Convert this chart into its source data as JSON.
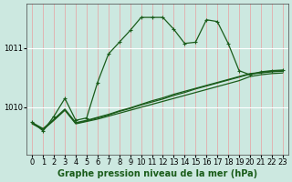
{
  "title": "Graphe pression niveau de la mer (hPa)",
  "background_color": "#cce8e0",
  "plot_bg_color": "#cce8e0",
  "grid_color_v": "#e8a0a0",
  "grid_color_h": "#ffffff",
  "line_color": "#1a5c1a",
  "xlim": [
    -0.5,
    23.5
  ],
  "ylim": [
    1009.2,
    1011.75
  ],
  "yticks": [
    1010,
    1011
  ],
  "xticks": [
    0,
    1,
    2,
    3,
    4,
    5,
    6,
    7,
    8,
    9,
    10,
    11,
    12,
    13,
    14,
    15,
    16,
    17,
    18,
    19,
    20,
    21,
    22,
    23
  ],
  "main_x": [
    0,
    1,
    2,
    3,
    4,
    5,
    6,
    7,
    8,
    9,
    10,
    11,
    12,
    13,
    14,
    15,
    16,
    17,
    18,
    19,
    20,
    21,
    22,
    23
  ],
  "main_y": [
    1009.75,
    1009.6,
    1009.85,
    1010.15,
    1009.78,
    1009.82,
    1010.42,
    1010.9,
    1011.1,
    1011.3,
    1011.52,
    1011.52,
    1011.52,
    1011.32,
    1011.08,
    1011.1,
    1011.48,
    1011.45,
    1011.08,
    1010.62,
    1010.55,
    1010.6,
    1010.62,
    1010.63
  ],
  "line1_x": [
    0,
    1,
    2,
    3,
    4,
    5,
    6,
    7,
    8,
    9,
    10,
    11,
    12,
    13,
    14,
    15,
    16,
    17,
    18,
    19,
    20,
    21,
    22,
    23
  ],
  "line1_y": [
    1009.72,
    1009.62,
    1009.78,
    1009.95,
    1009.72,
    1009.76,
    1009.8,
    1009.85,
    1009.9,
    1009.95,
    1010.0,
    1010.05,
    1010.1,
    1010.15,
    1010.2,
    1010.25,
    1010.3,
    1010.35,
    1010.4,
    1010.45,
    1010.52,
    1010.55,
    1010.57,
    1010.58
  ],
  "line2_x": [
    0,
    1,
    2,
    3,
    4,
    5,
    6,
    7,
    8,
    9,
    10,
    11,
    12,
    13,
    14,
    15,
    16,
    17,
    18,
    19,
    20,
    21,
    22,
    23
  ],
  "line2_y": [
    1009.73,
    1009.63,
    1009.79,
    1009.96,
    1009.73,
    1009.77,
    1009.82,
    1009.87,
    1009.93,
    1009.98,
    1010.04,
    1010.09,
    1010.14,
    1010.2,
    1010.25,
    1010.31,
    1010.36,
    1010.41,
    1010.46,
    1010.51,
    1010.56,
    1010.58,
    1010.6,
    1010.61
  ],
  "line3_x": [
    0,
    1,
    2,
    3,
    4,
    5,
    6,
    7,
    8,
    9,
    10,
    11,
    12,
    13,
    14,
    15,
    16,
    17,
    18,
    19,
    20,
    21,
    22,
    23
  ],
  "line3_y": [
    1009.74,
    1009.64,
    1009.8,
    1009.97,
    1009.74,
    1009.78,
    1009.83,
    1009.88,
    1009.94,
    1009.99,
    1010.05,
    1010.11,
    1010.16,
    1010.22,
    1010.27,
    1010.32,
    1010.37,
    1010.42,
    1010.47,
    1010.52,
    1010.57,
    1010.59,
    1010.61,
    1010.62
  ],
  "marker": "+",
  "markersize": 3,
  "linewidth": 0.9,
  "tick_fontsize": 6,
  "title_fontsize": 7
}
